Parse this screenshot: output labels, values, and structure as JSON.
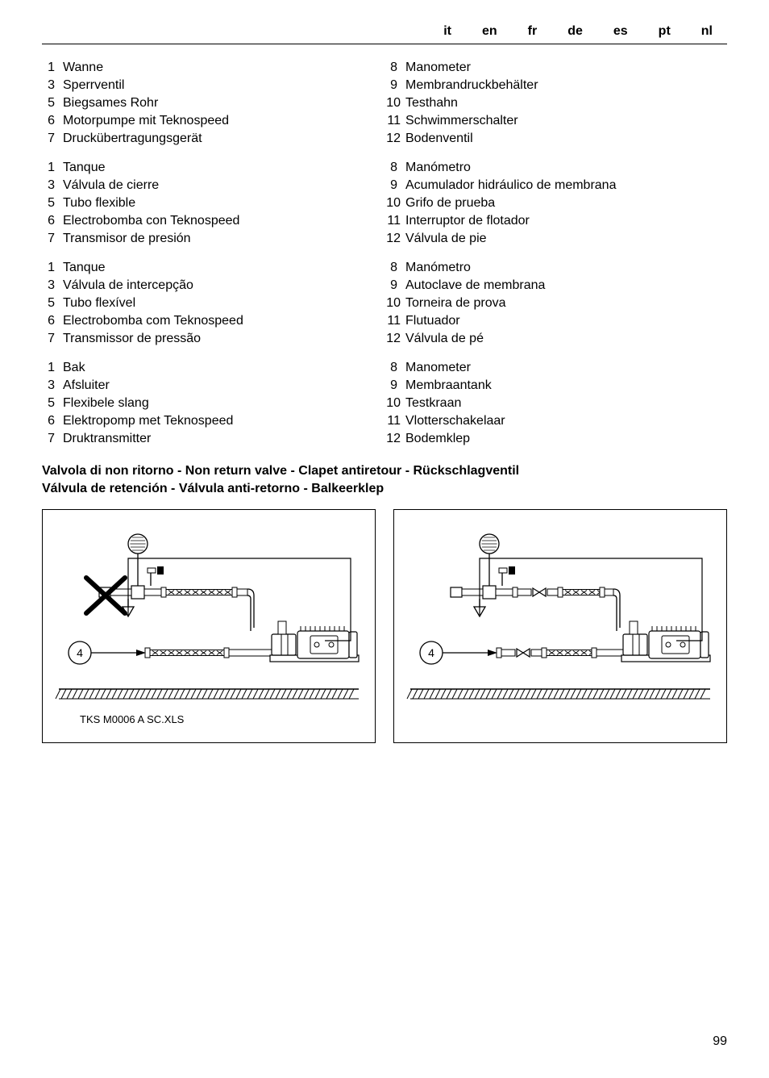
{
  "page_number": "99",
  "languages": [
    "it",
    "en",
    "fr",
    "de",
    "es",
    "pt",
    "nl"
  ],
  "legend_groups": [
    {
      "left": [
        {
          "n": "1",
          "t": "Wanne"
        },
        {
          "n": "3",
          "t": "Sperrventil"
        },
        {
          "n": "5",
          "t": "Biegsames Rohr"
        },
        {
          "n": "6",
          "t": "Motorpumpe mit Teknospeed"
        },
        {
          "n": "7",
          "t": "Druckübertragungsgerät"
        }
      ],
      "right": [
        {
          "n": "8",
          "t": "Manometer"
        },
        {
          "n": "9",
          "t": "Membrandruckbehälter"
        },
        {
          "n": "10",
          "t": "Testhahn"
        },
        {
          "n": "11",
          "t": "Schwimmerschalter"
        },
        {
          "n": "12",
          "t": "Bodenventil"
        }
      ]
    },
    {
      "left": [
        {
          "n": "1",
          "t": "Tanque"
        },
        {
          "n": "3",
          "t": "Válvula de cierre"
        },
        {
          "n": "5",
          "t": "Tubo flexible"
        },
        {
          "n": "6",
          "t": "Electrobomba con Teknospeed"
        },
        {
          "n": "7",
          "t": "Transmisor de presión"
        }
      ],
      "right": [
        {
          "n": "8",
          "t": "Manómetro"
        },
        {
          "n": "9",
          "t": "Acumulador hidráulico de membrana"
        },
        {
          "n": "10",
          "t": "Grifo de prueba"
        },
        {
          "n": "11",
          "t": "Interruptor de flotador"
        },
        {
          "n": "12",
          "t": "Válvula de pie"
        }
      ]
    },
    {
      "left": [
        {
          "n": "1",
          "t": "Tanque"
        },
        {
          "n": "3",
          "t": "Válvula de intercepção"
        },
        {
          "n": "5",
          "t": "Tubo flexível"
        },
        {
          "n": "6",
          "t": "Electrobomba com Teknospeed"
        },
        {
          "n": "7",
          "t": "Transmissor de pressão"
        }
      ],
      "right": [
        {
          "n": "8",
          "t": "Manómetro"
        },
        {
          "n": "9",
          "t": "Autoclave de membrana"
        },
        {
          "n": "10",
          "t": "Torneira de prova"
        },
        {
          "n": "11",
          "t": "Flutuador"
        },
        {
          "n": "12",
          "t": "Válvula de pé"
        }
      ]
    },
    {
      "left": [
        {
          "n": "1",
          "t": "Bak"
        },
        {
          "n": "3",
          "t": "Afsluiter"
        },
        {
          "n": "5",
          "t": "Flexibele slang"
        },
        {
          "n": "6",
          "t": "Elektropomp met Teknospeed"
        },
        {
          "n": "7",
          "t": "Druktransmitter"
        }
      ],
      "right": [
        {
          "n": "8",
          "t": "Manometer"
        },
        {
          "n": "9",
          "t": "Membraantank"
        },
        {
          "n": "10",
          "t": "Testkraan"
        },
        {
          "n": "11",
          "t": "Vlotterschakelaar"
        },
        {
          "n": "12",
          "t": "Bodemklep"
        }
      ]
    }
  ],
  "valve_heading_line1": "Valvola di non ritorno - Non return valve - Clapet antiretour - Rückschlagventil",
  "valve_heading_line2": "Válvula de retención - Válvula anti-retorno - Balkeerklep",
  "diagram_caption": "TKS M0006 A SC.XLS",
  "callout_number": "4",
  "colors": {
    "stroke": "#000000",
    "bg": "#ffffff",
    "hatch": "#000000"
  },
  "line_width_thin": 1,
  "line_width_med": 1.5,
  "line_width_thick": 2.2
}
